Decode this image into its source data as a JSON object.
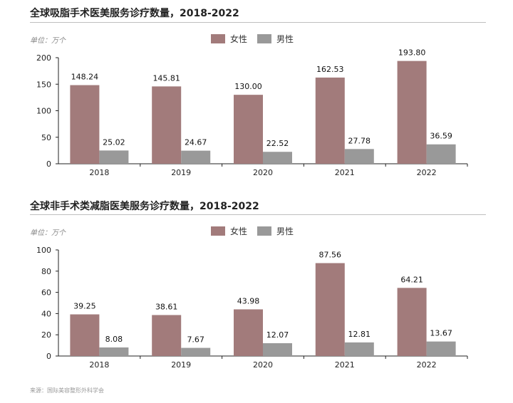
{
  "colors": {
    "female": "#a27b7b",
    "male": "#999999",
    "axis": "#222222"
  },
  "chart_data": [
    {
      "type": "bar",
      "title": "全球吸脂手术医美服务诊疗数量，2018-2022",
      "unit": "单位：万个",
      "categories": [
        "2018",
        "2019",
        "2020",
        "2021",
        "2022"
      ],
      "series": [
        {
          "name": "女性",
          "values": [
            148.24,
            145.81,
            130.0,
            162.53,
            193.8
          ],
          "labels": [
            "148.24",
            "145.81",
            "130.00",
            "162.53",
            "193.80"
          ]
        },
        {
          "name": "男性",
          "values": [
            25.02,
            24.67,
            22.52,
            27.78,
            36.59
          ],
          "labels": [
            "25.02",
            "24.67",
            "22.52",
            "27.78",
            "36.59"
          ]
        }
      ],
      "ylim": [
        0,
        200
      ],
      "yticks": [
        "0",
        "50",
        "100",
        "150",
        "200"
      ],
      "legend_position": "top-center",
      "grid": false
    },
    {
      "type": "bar",
      "title": "全球非手术类减脂医美服务诊疗数量，2018-2022",
      "unit": "单位：万个",
      "categories": [
        "2018",
        "2019",
        "2020",
        "2021",
        "2022"
      ],
      "series": [
        {
          "name": "女性",
          "values": [
            39.25,
            38.61,
            43.98,
            87.56,
            64.21
          ],
          "labels": [
            "39.25",
            "38.61",
            "43.98",
            "87.56",
            "64.21"
          ]
        },
        {
          "name": "男性",
          "values": [
            8.08,
            7.67,
            12.07,
            12.81,
            13.67
          ],
          "labels": [
            "8.08",
            "7.67",
            "12.07",
            "12.81",
            "13.67"
          ]
        }
      ],
      "ylim": [
        0,
        100
      ],
      "yticks": [
        "0",
        "20",
        "40",
        "60",
        "80",
        "100"
      ],
      "legend_position": "top-center",
      "grid": false
    }
  ],
  "source": "来源：国际美容整形外科学会"
}
